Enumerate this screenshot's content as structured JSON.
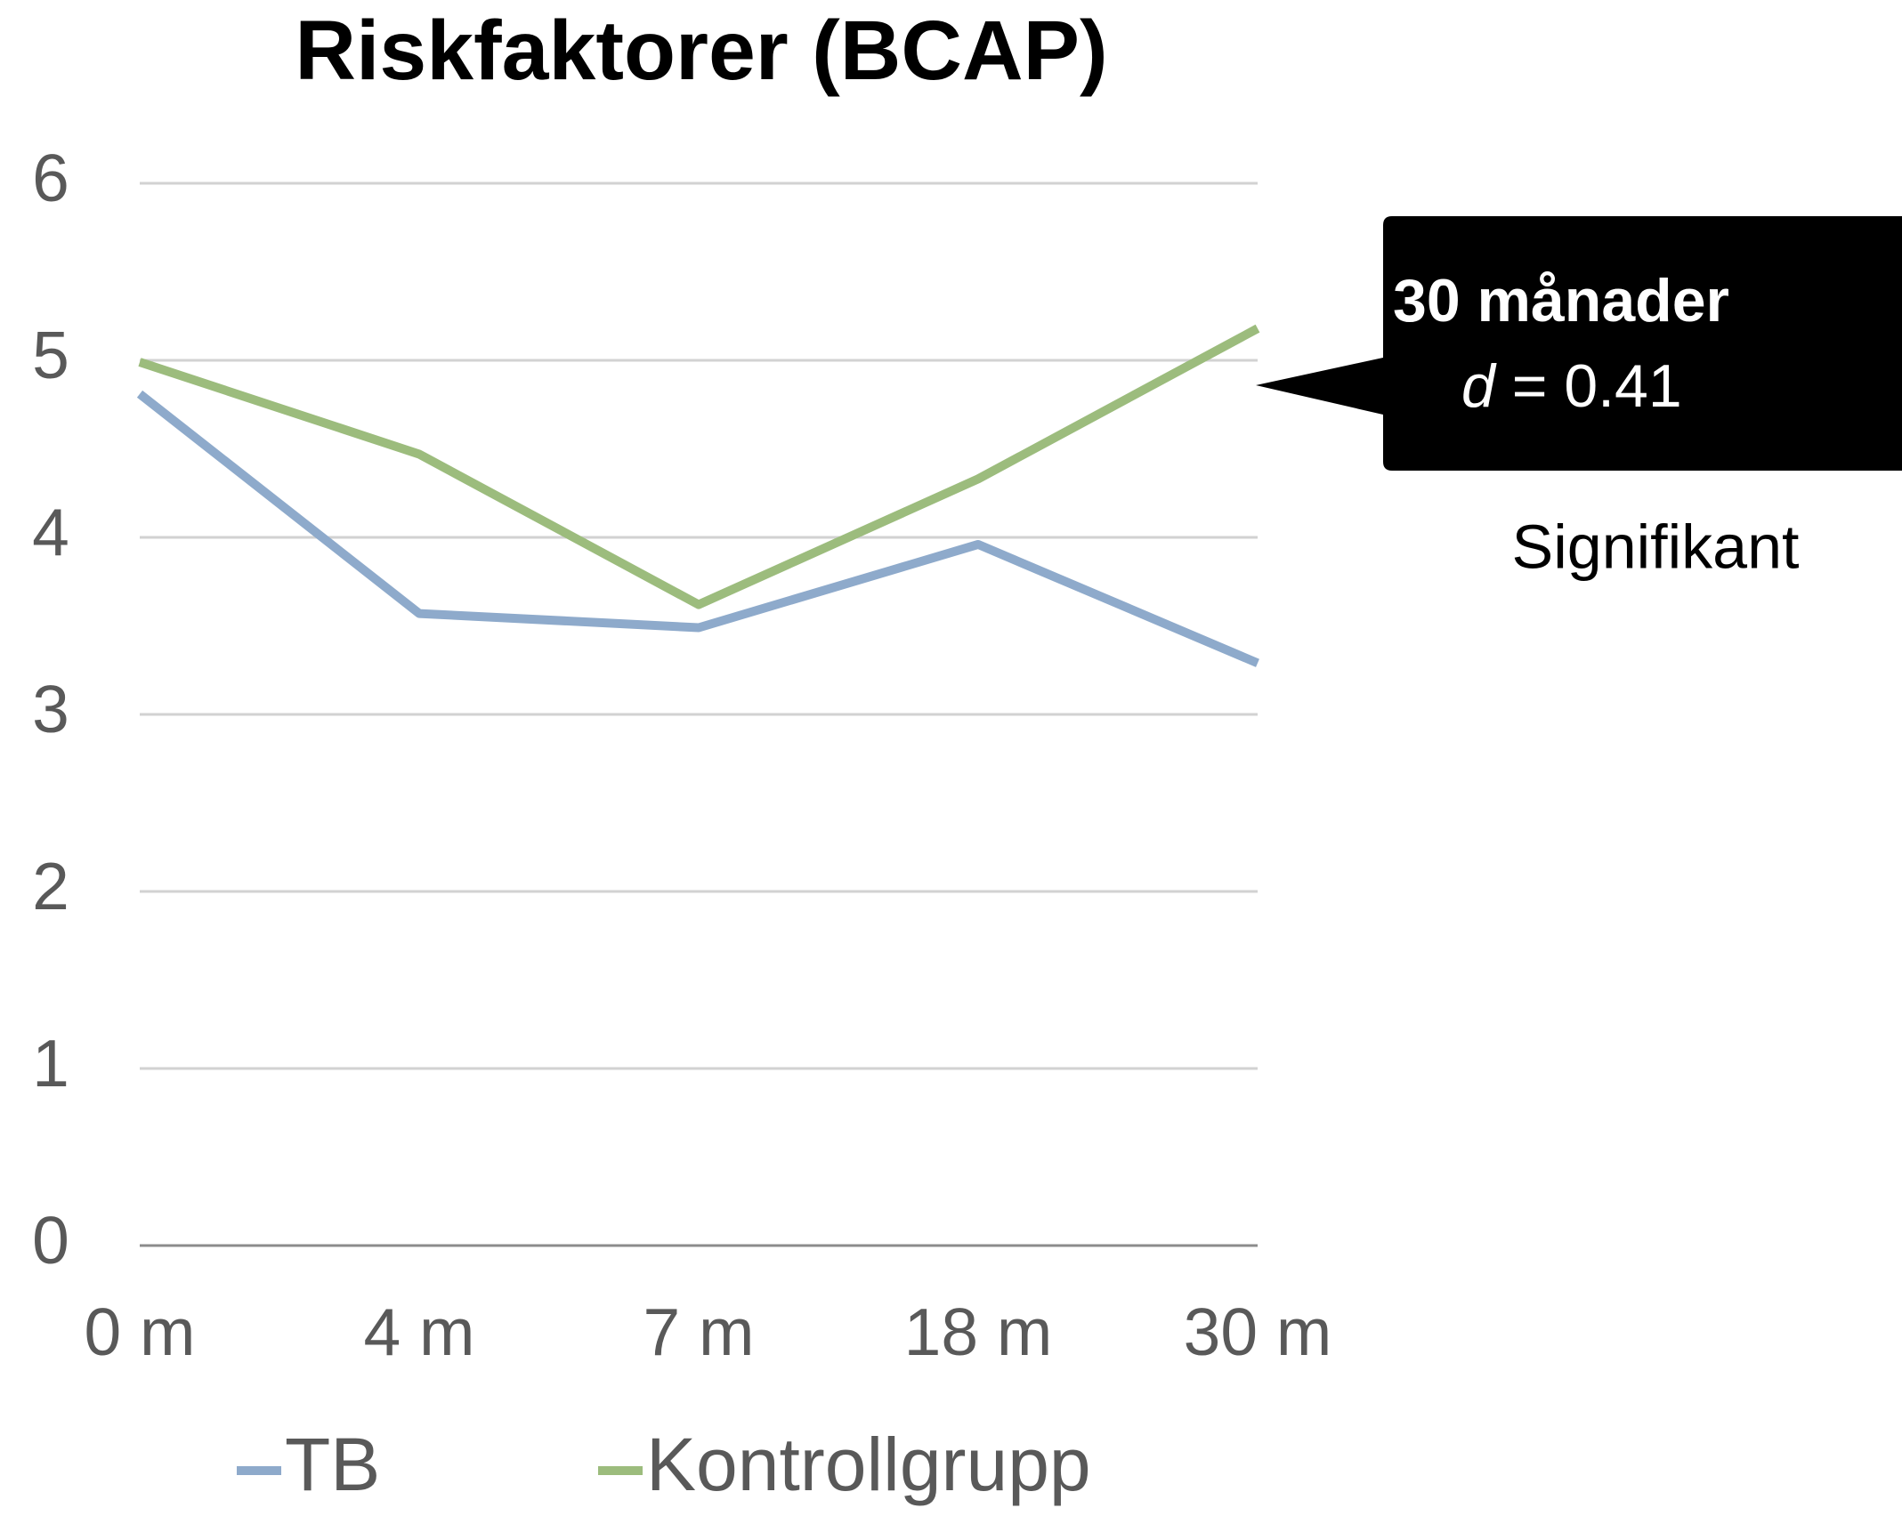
{
  "chart_data": {
    "type": "line",
    "title": "Riskfaktorer (BCAP)",
    "categories": [
      "0 m",
      "4 m",
      "7 m",
      "18 m",
      "30 m"
    ],
    "series": [
      {
        "name": "TB",
        "color": "#8eaacb",
        "values": [
          4.81,
          3.57,
          3.49,
          3.96,
          3.29
        ]
      },
      {
        "name": "Kontrollgrupp",
        "color": "#9cbc7d",
        "values": [
          4.99,
          4.47,
          3.62,
          4.33,
          5.18
        ]
      }
    ],
    "ylim": [
      0,
      6
    ],
    "yticks": [
      0,
      1,
      2,
      3,
      4,
      5,
      6
    ],
    "grid": true,
    "legend": "bottom",
    "annotation": {
      "heading": "30 månader",
      "stat_symbol": "d",
      "stat_text": "= 0.41",
      "note": "Signifikant"
    }
  }
}
